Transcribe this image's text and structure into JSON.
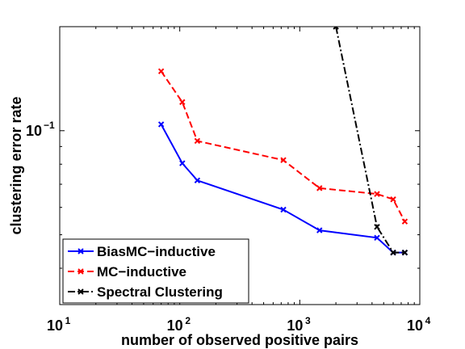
{
  "chart_data": {
    "type": "line",
    "xlabel": "number of observed positive pairs",
    "ylabel": "clustering error rate",
    "xscale": "log",
    "yscale": "log",
    "xlim": [
      10,
      10000
    ],
    "ylim": [
      0.0314,
      0.2
    ],
    "x_ticks": [
      {
        "value": 10,
        "base": "10",
        "exp": "1"
      },
      {
        "value": 100,
        "base": "10",
        "exp": "2"
      },
      {
        "value": 1000,
        "base": "10",
        "exp": "3"
      },
      {
        "value": 10000,
        "base": "10",
        "exp": "4"
      }
    ],
    "y_ticks": [
      {
        "value": 0.1,
        "base": "10",
        "exp": "−1"
      }
    ],
    "legend_position": "bottom-left",
    "grid": false,
    "series": [
      {
        "name": "BiasMC−inductive",
        "color": "#0000ff",
        "line_style": "solid",
        "marker": "x",
        "points": [
          [
            70,
            0.1043
          ],
          [
            105,
            0.0805
          ],
          [
            140,
            0.0718
          ],
          [
            730,
            0.0591
          ],
          [
            1460,
            0.0515
          ],
          [
            4400,
            0.049
          ],
          [
            6000,
            0.0444
          ],
          [
            7500,
            0.0444
          ]
        ]
      },
      {
        "name": "MC−inductive",
        "color": "#ff0000",
        "line_style": "dashed",
        "marker": "x",
        "points": [
          [
            70,
            0.1486
          ],
          [
            105,
            0.121
          ],
          [
            140,
            0.0934
          ],
          [
            730,
            0.0822
          ],
          [
            1460,
            0.0682
          ],
          [
            4400,
            0.0656
          ],
          [
            6000,
            0.0633
          ],
          [
            7500,
            0.0546
          ]
        ]
      },
      {
        "name": "Spectral Clustering",
        "color": "#000000",
        "line_style": "dash-dot",
        "marker": "x",
        "points": [
          [
            2000,
            0.2
          ],
          [
            4400,
            0.0527
          ],
          [
            6000,
            0.0444
          ],
          [
            7500,
            0.0444
          ]
        ]
      }
    ]
  }
}
